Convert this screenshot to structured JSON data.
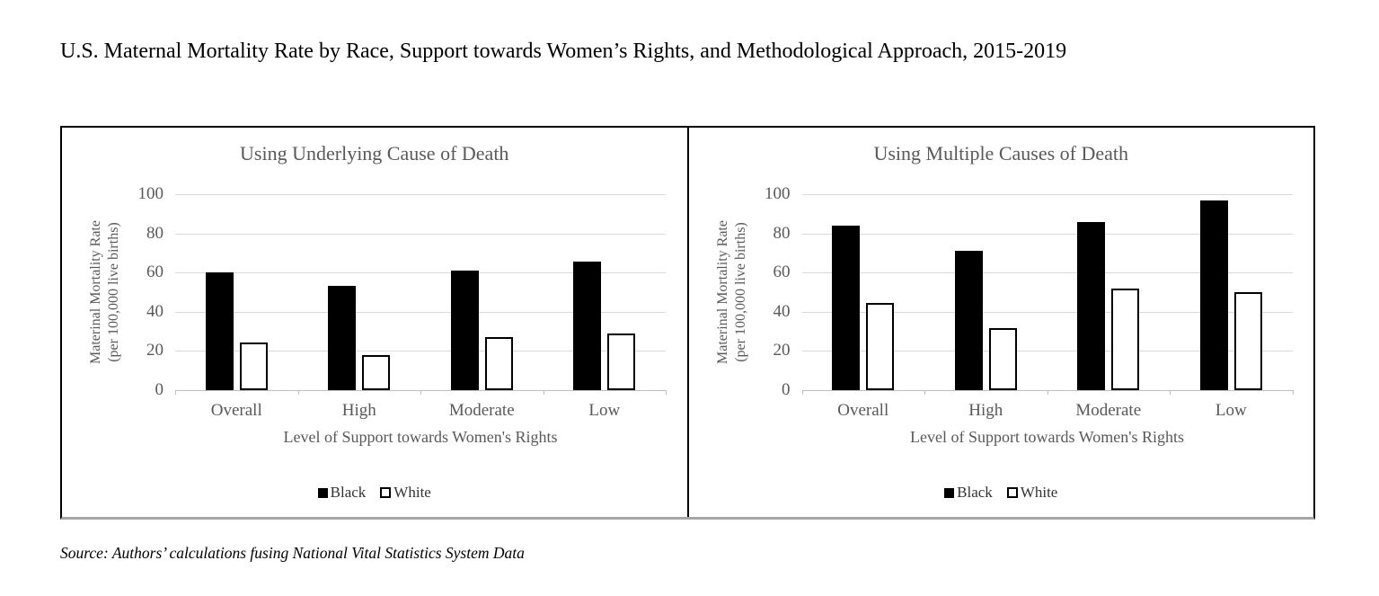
{
  "page": {
    "title": "U.S. Maternal Mortality Rate by Race, Support towards Women’s Rights, and Methodological Approach, 2015-2019",
    "source_note": "Source: Authors’ calculations fusing National Vital Statistics System Data"
  },
  "chart_data": [
    {
      "type": "bar",
      "title": "Using Underlying Cause of Death",
      "categories": [
        "Overall",
        "High",
        "Moderate",
        "Low"
      ],
      "series": [
        {
          "name": "Black",
          "values": [
            60,
            53,
            61,
            65.5
          ],
          "style": "filled-black"
        },
        {
          "name": "White",
          "values": [
            24.5,
            18,
            27,
            29
          ],
          "style": "white-outlined"
        }
      ],
      "xlabel": "Level of Support towards Women's Rights",
      "ylabel_lines": [
        "Materinal Mortality Rate",
        "(per 100,000 live births)"
      ],
      "ylim": [
        0,
        100
      ],
      "yticks": [
        0,
        20,
        40,
        60,
        80,
        100
      ],
      "grid": true,
      "legend_position": "bottom-center"
    },
    {
      "type": "bar",
      "title": "Using Multiple Causes of Death",
      "categories": [
        "Overall",
        "High",
        "Moderate",
        "Low"
      ],
      "series": [
        {
          "name": "Black",
          "values": [
            84,
            71,
            86,
            97
          ],
          "style": "filled-black"
        },
        {
          "name": "White",
          "values": [
            44.5,
            31.5,
            52,
            50
          ],
          "style": "white-outlined"
        }
      ],
      "xlabel": "Level of Support towards Women's Rights",
      "ylabel_lines": [
        "Materinal Mortality Rate",
        "(per 100,000 live births)"
      ],
      "ylim": [
        0,
        100
      ],
      "yticks": [
        0,
        20,
        40,
        60,
        80,
        100
      ],
      "grid": true,
      "legend_position": "bottom-center"
    }
  ],
  "colors": {
    "bar_black": "#000000",
    "bar_white_fill": "#ffffff",
    "bar_white_border": "#000000",
    "gridline": "#d9d9d9",
    "axis_line": "#bfbfbf",
    "chart_text": "#595959",
    "panel_border": "#000000",
    "panel_bottom_border": "#a6a6a6"
  }
}
